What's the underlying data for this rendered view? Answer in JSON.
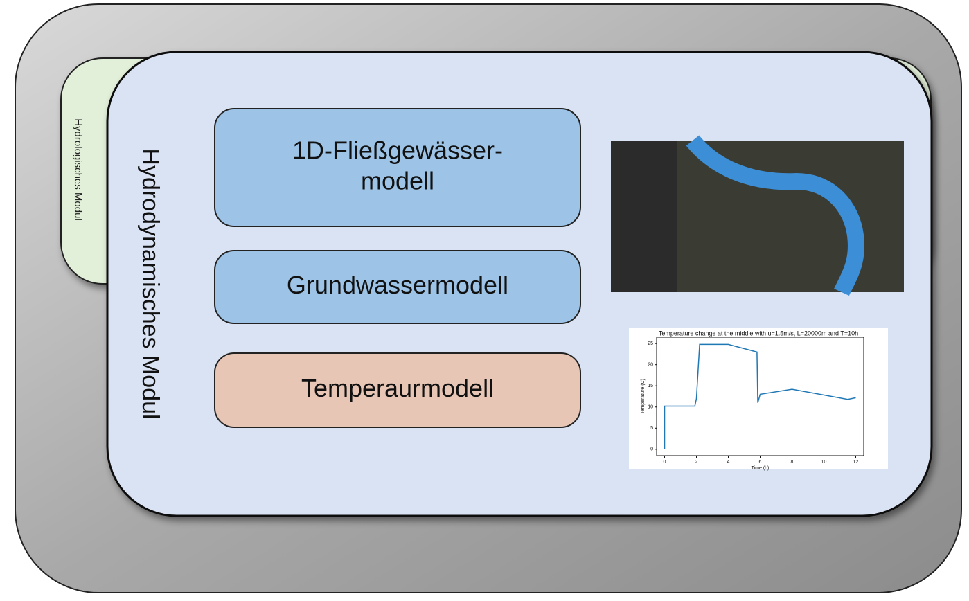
{
  "outer_module": {
    "title": "Hydrologisches Modul"
  },
  "inner_module": {
    "title": "Hydrodynamisches Modul",
    "boxes": [
      {
        "lines": [
          "1D-Fließgewässer-",
          "modell"
        ]
      },
      {
        "lines": [
          "Grundwassermodell"
        ]
      },
      {
        "lines": [
          "Temperaurmodell"
        ]
      }
    ]
  },
  "plot": {
    "type": "line",
    "title": "Temperature change at the middle with u=1.5m/s, L=20000m and T=10h",
    "x_label": "Time (h)",
    "y_label": "Temperature (C)",
    "x": [
      0,
      0,
      1.9,
      2,
      2.2,
      4,
      5.8,
      5.85,
      6,
      8,
      11.5,
      12
    ],
    "values": [
      0,
      10.2,
      10.2,
      12,
      24.8,
      24.8,
      23,
      11,
      13,
      14.2,
      11.8,
      12.2
    ],
    "color": "#1f77b4",
    "xlim": [
      -0.5,
      12.5
    ],
    "ylim": [
      -1.5,
      26.5
    ],
    "xticks": [
      0,
      2,
      4,
      6,
      8,
      10,
      12
    ],
    "yticks": [
      0,
      5,
      10,
      15,
      20,
      25
    ]
  }
}
